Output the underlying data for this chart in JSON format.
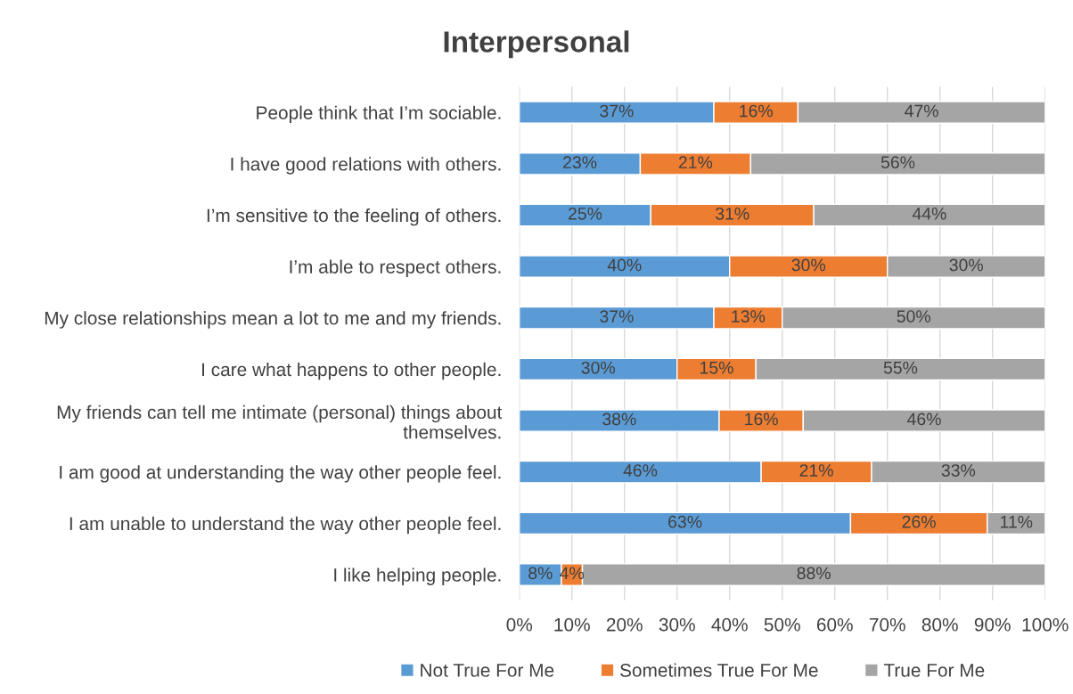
{
  "chart_data": {
    "type": "bar",
    "orientation": "horizontal",
    "stacked": true,
    "title": "Interpersonal",
    "categories": [
      "People think that I’m sociable.",
      "I have good relations with others.",
      "I’m sensitive to the feeling of others.",
      "I’m able to respect others.",
      "My close relationships mean a lot to me and my friends.",
      "I care what happens to other people.",
      "My friends can tell me intimate (personal) things about\nthemselves.",
      "I am good at understanding the way other people feel.",
      "I am unable to understand the way other people feel.",
      "I like helping people."
    ],
    "series": [
      {
        "name": "Not True For Me",
        "color": "#5b9bd5",
        "values": [
          37,
          23,
          25,
          40,
          37,
          30,
          38,
          46,
          63,
          8
        ],
        "value_labels": [
          "37%",
          "23%",
          "25%",
          "40%",
          "37%",
          "30%",
          "38%",
          "46%",
          "63%",
          "8%"
        ]
      },
      {
        "name": "Sometimes True For Me",
        "color": "#ed7d31",
        "values": [
          16,
          21,
          31,
          30,
          13,
          15,
          16,
          21,
          26,
          4
        ],
        "value_labels": [
          "16%",
          "21%",
          "31%",
          "30%",
          "13%",
          "15%",
          "16%",
          "21%",
          "26%",
          "4%"
        ]
      },
      {
        "name": "True For Me",
        "color": "#a5a5a5",
        "values": [
          47,
          56,
          44,
          30,
          50,
          55,
          46,
          33,
          11,
          88
        ],
        "value_labels": [
          "47%",
          "56%",
          "44%",
          "30%",
          "50%",
          "55%",
          "46%",
          "33%",
          "11%",
          "88%"
        ]
      }
    ],
    "xlim": [
      0,
      100
    ],
    "xticks": [
      {
        "value": 0,
        "label": "0%"
      },
      {
        "value": 10,
        "label": "10%"
      },
      {
        "value": 20,
        "label": "20%"
      },
      {
        "value": 30,
        "label": "30%"
      },
      {
        "value": 40,
        "label": "40%"
      },
      {
        "value": 50,
        "label": "50%"
      },
      {
        "value": 60,
        "label": "60%"
      },
      {
        "value": 70,
        "label": "70%"
      },
      {
        "value": 80,
        "label": "80%"
      },
      {
        "value": 90,
        "label": "90%"
      },
      {
        "value": 100,
        "label": "100%"
      }
    ],
    "grid": "x",
    "legend": "bottom"
  }
}
